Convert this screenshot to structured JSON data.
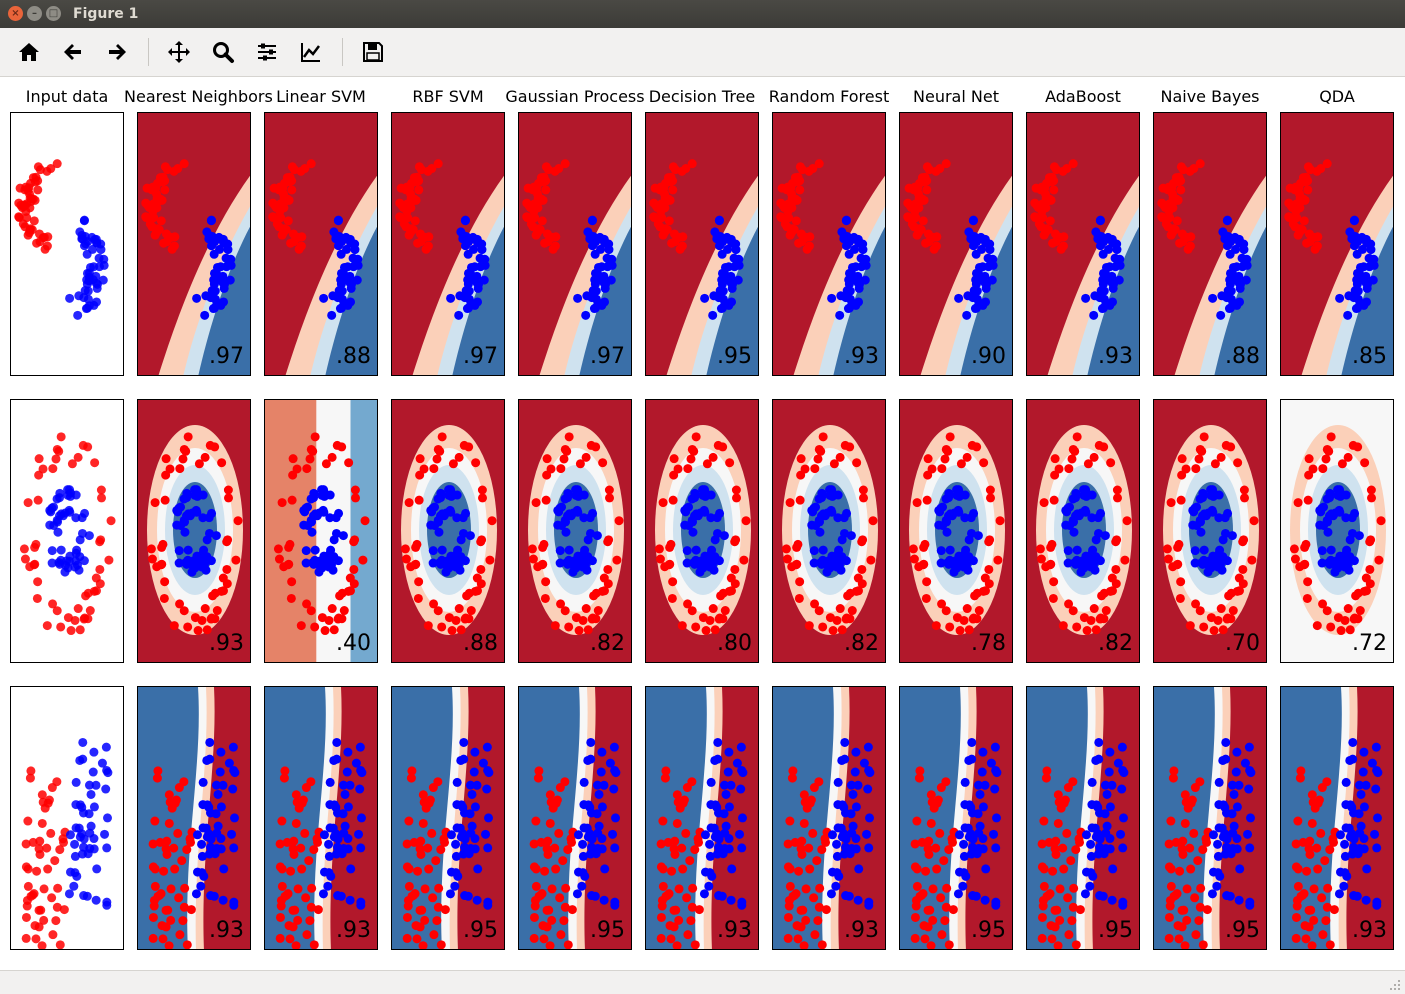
{
  "window": {
    "title": "Figure 1"
  },
  "toolbar": {
    "buttons": [
      {
        "name": "home-icon",
        "label": "Home"
      },
      {
        "name": "back-icon",
        "label": "Back"
      },
      {
        "name": "forward-icon",
        "label": "Forward"
      },
      {
        "name": "pan-icon",
        "label": "Pan"
      },
      {
        "name": "zoom-icon",
        "label": "Zoom"
      },
      {
        "name": "subplots-icon",
        "label": "Subplots"
      },
      {
        "name": "edit-axis-icon",
        "label": "Customize"
      },
      {
        "name": "save-icon",
        "label": "Save"
      }
    ]
  },
  "figure": {
    "columns": [
      "Input data",
      "Nearest Neighbors",
      "Linear SVM",
      "RBF SVM",
      "Gaussian Process",
      "Decision Tree",
      "Random Forest",
      "Neural Net",
      "AdaBoost",
      "Naive Bayes",
      "QDA"
    ],
    "rows": [
      {
        "dataset": "moons",
        "scores": [
          ".97",
          ".88",
          ".97",
          ".97",
          ".95",
          ".93",
          ".90",
          ".93",
          ".88",
          ".85"
        ]
      },
      {
        "dataset": "circles",
        "scores": [
          ".93",
          ".40",
          ".88",
          ".82",
          ".80",
          ".82",
          ".78",
          ".82",
          ".70",
          ".72"
        ]
      },
      {
        "dataset": "linear",
        "scores": [
          ".93",
          ".93",
          ".95",
          ".95",
          ".93",
          ".93",
          ".95",
          ".95",
          ".95",
          ".93"
        ]
      }
    ]
  },
  "colors": {
    "red_dark": "#b2182b",
    "red_mid": "#e58368",
    "red_light": "#fbd0b9",
    "neutral": "#f7f7f7",
    "blue_light": "#cfe2ef",
    "blue_mid": "#74a9cf",
    "blue_dark": "#3a6fa8",
    "point_red": "#ff0000",
    "point_blue": "#0000ff"
  }
}
